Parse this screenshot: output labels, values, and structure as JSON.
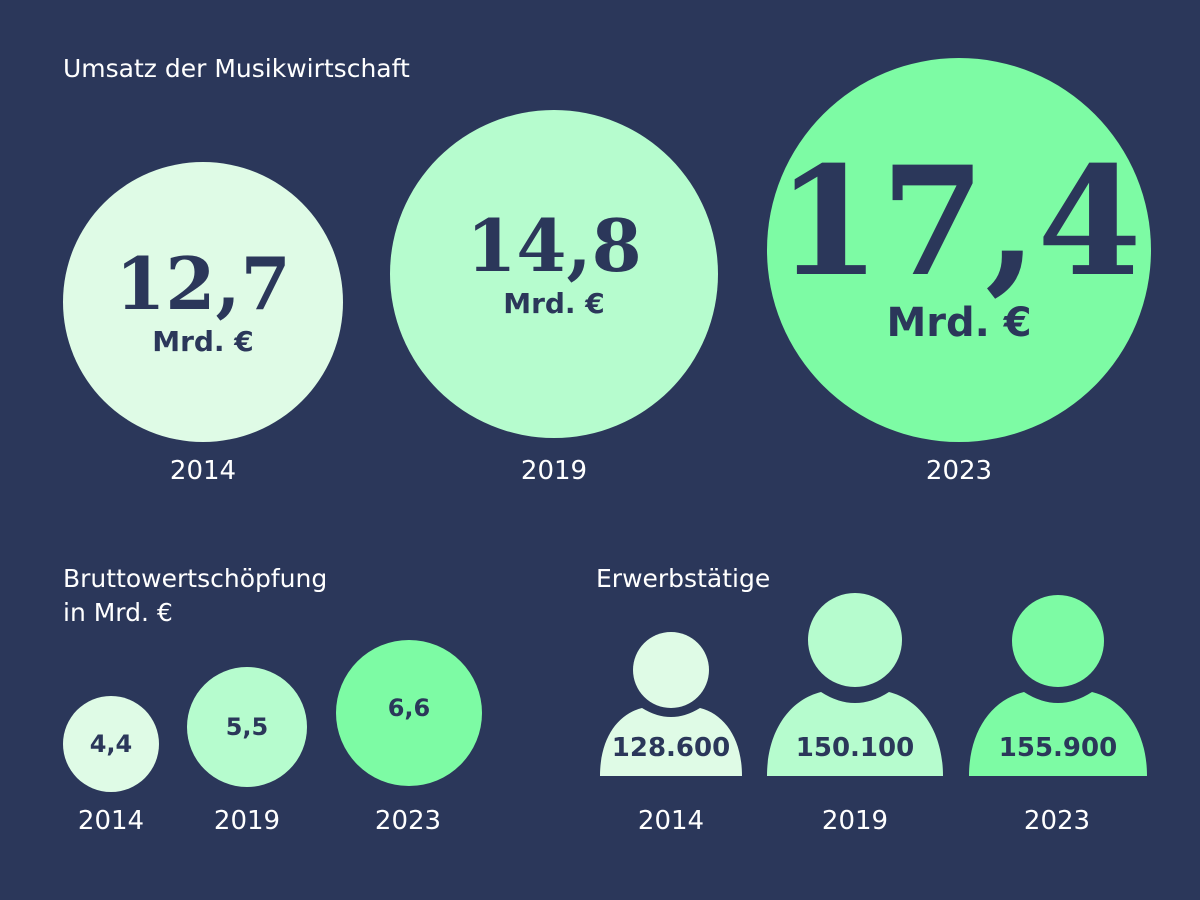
{
  "colors": {
    "background": "#2b375a",
    "c2014": "#dffbe6",
    "c2019": "#b6fcce",
    "c2023": "#7dfba4",
    "text_dark": "#2b375a"
  },
  "umsatz": {
    "title": "Umsatz der Musikwirtschaft",
    "unit": "Mrd. €",
    "items": [
      {
        "year": "2014",
        "value_label": "12,7"
      },
      {
        "year": "2019",
        "value_label": "14,8"
      },
      {
        "year": "2023",
        "value_label": "17,4"
      }
    ]
  },
  "bws": {
    "title_line1": "Bruttowertschöpfung",
    "title_line2": "in Mrd. €",
    "items": [
      {
        "year": "2014",
        "value_label": "4,4"
      },
      {
        "year": "2019",
        "value_label": "5,5"
      },
      {
        "year": "2023",
        "value_label": "6,6"
      }
    ]
  },
  "erwerb": {
    "title": "Erwerbstätige",
    "items": [
      {
        "year": "2014",
        "value_label": "128.600"
      },
      {
        "year": "2019",
        "value_label": "150.100"
      },
      {
        "year": "2023",
        "value_label": "155.900"
      }
    ]
  },
  "chart_data": [
    {
      "type": "bubble",
      "title": "Umsatz der Musikwirtschaft",
      "unit": "Mrd. €",
      "categories": [
        "2014",
        "2019",
        "2023"
      ],
      "values": [
        12.7,
        14.8,
        17.4
      ]
    },
    {
      "type": "bubble",
      "title": "Bruttowertschöpfung in Mrd. €",
      "categories": [
        "2014",
        "2019",
        "2023"
      ],
      "values": [
        4.4,
        5.5,
        6.6
      ]
    },
    {
      "type": "pictogram",
      "title": "Erwerbstätige",
      "categories": [
        "2014",
        "2019",
        "2023"
      ],
      "values": [
        128600,
        150100,
        155900
      ]
    }
  ]
}
